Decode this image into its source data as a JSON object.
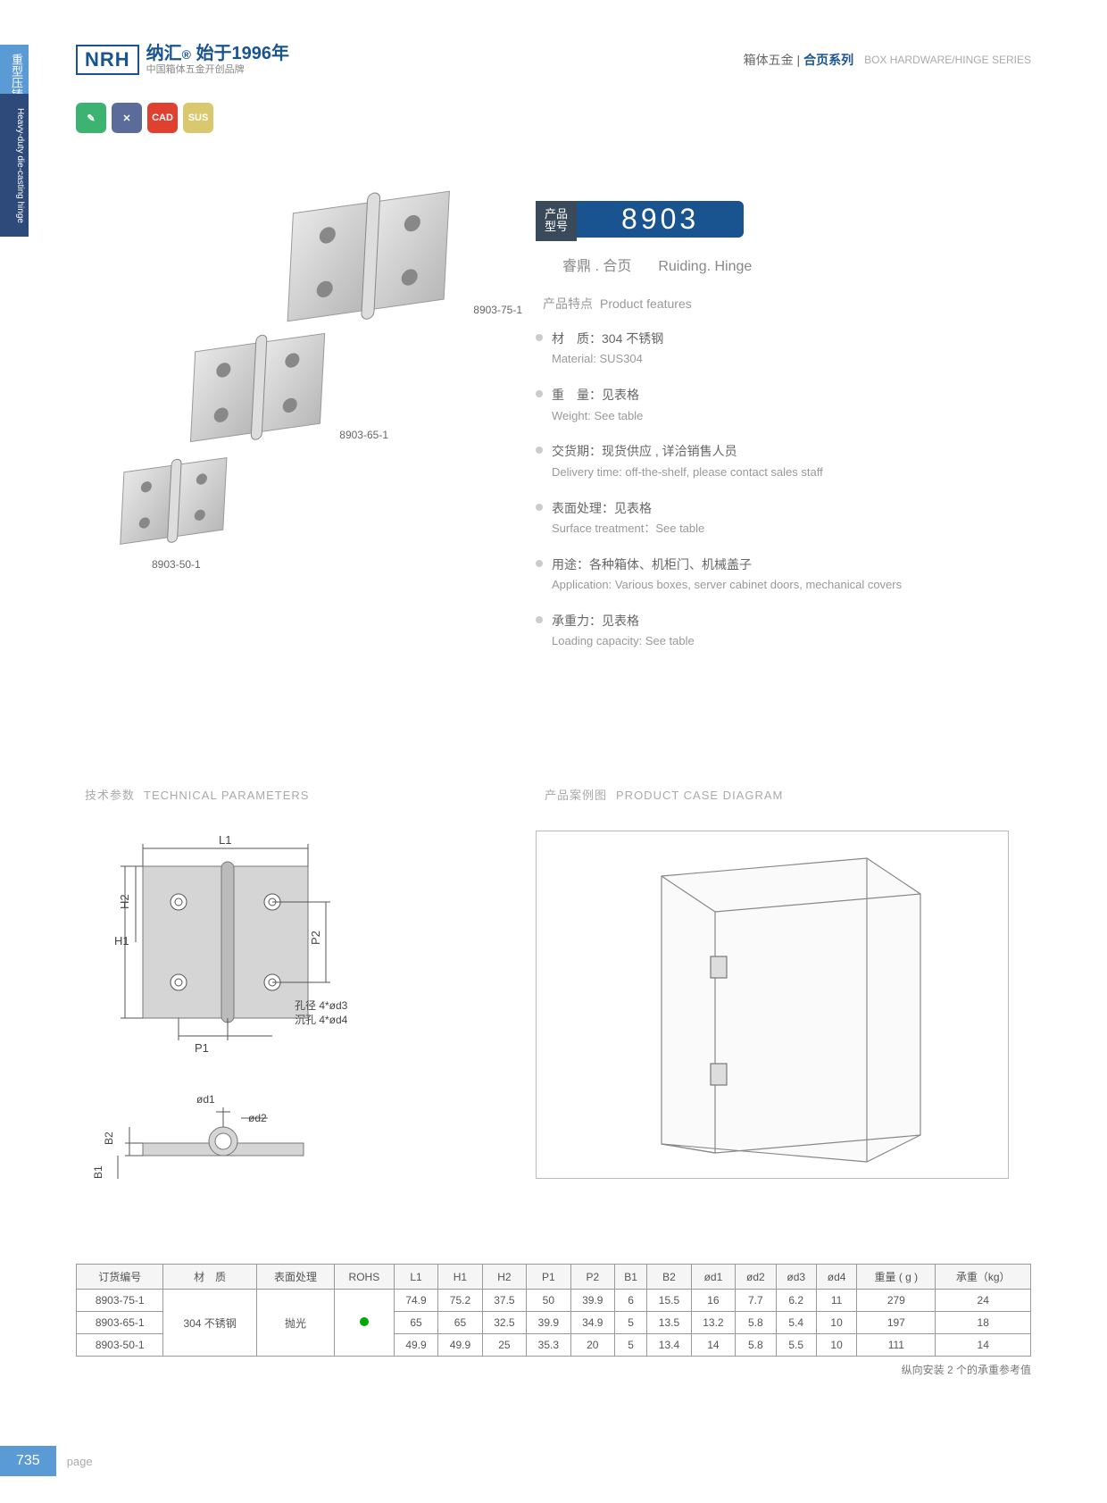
{
  "side": {
    "cn": "重型压铸合页",
    "en": "Heavy-duty die-casting hinge"
  },
  "header": {
    "logo": "NRH",
    "brand_cn": "纳汇",
    "since": "始于1996年",
    "tagline": "中国箱体五金开创品牌",
    "right_cn": "箱体五金",
    "right_cat": "合页系列",
    "right_en": "BOX HARDWARE/HINGE SERIES"
  },
  "badges": [
    {
      "color": "#3cb371",
      "txt": "✎"
    },
    {
      "color": "#5b6b9a",
      "txt": "✕"
    },
    {
      "color": "#e04030",
      "txt": "CAD"
    },
    {
      "color": "#d9c86e",
      "txt": "SUS"
    }
  ],
  "products": [
    {
      "label": "8903-75-1"
    },
    {
      "label": "8903-65-1"
    },
    {
      "label": "8903-50-1"
    }
  ],
  "model": {
    "tag": "产品\n型号",
    "num": "8903",
    "name_cn": "睿鼎 . 合页",
    "name_en": "Ruiding. Hinge"
  },
  "features": {
    "title_cn": "产品特点",
    "title_en": "Product features",
    "items": [
      {
        "cn": "材　质：304 不锈钢",
        "en": "Material: SUS304"
      },
      {
        "cn": "重　量：见表格",
        "en": "Weight: See table"
      },
      {
        "cn": "交货期：现货供应 , 详洽销售人员",
        "en": "Delivery time: off-the-shelf, please contact sales staff"
      },
      {
        "cn": "表面处理：见表格",
        "en": "Surface treatment：See table"
      },
      {
        "cn": "用途：各种箱体、机柜门、机械盖子",
        "en": "Application: Various boxes, server cabinet doors, mechanical covers"
      },
      {
        "cn": "承重力：见表格",
        "en": "Loading capacity: See table"
      }
    ]
  },
  "tech": {
    "title_cn": "技术参数",
    "title_en": "TECHNICAL PARAMETERS",
    "labels": {
      "L1": "L1",
      "H1": "H1",
      "H2": "H2",
      "P1": "P1",
      "P2": "P2",
      "B1": "B1",
      "B2": "B2",
      "od1": "ød1",
      "od2": "ød2",
      "hole": "孔径 4*ød3",
      "sink": "沉孔 4*ød4"
    }
  },
  "case": {
    "title_cn": "产品案例图",
    "title_en": "PRODUCT CASE DIAGRAM"
  },
  "table": {
    "headers": [
      "订货编号",
      "材　质",
      "表面处理",
      "ROHS",
      "L1",
      "H1",
      "H2",
      "P1",
      "P2",
      "B1",
      "B2",
      "ød1",
      "ød2",
      "ød3",
      "ød4",
      "重量 ( g )",
      "承重（kg）"
    ],
    "material": "304 不锈钢",
    "surface": "抛光",
    "rows": [
      [
        "8903-75-1",
        "74.9",
        "75.2",
        "37.5",
        "50",
        "39.9",
        "6",
        "15.5",
        "16",
        "7.7",
        "6.2",
        "11",
        "279",
        "24"
      ],
      [
        "8903-65-1",
        "65",
        "65",
        "32.5",
        "39.9",
        "34.9",
        "5",
        "13.5",
        "13.2",
        "5.8",
        "5.4",
        "10",
        "197",
        "18"
      ],
      [
        "8903-50-1",
        "49.9",
        "49.9",
        "25",
        "35.3",
        "20",
        "5",
        "13.4",
        "14",
        "5.8",
        "5.5",
        "10",
        "111",
        "14"
      ]
    ],
    "note": "纵向安装 2 个的承重参考值"
  },
  "footer": {
    "page": "735",
    "label": "page"
  }
}
